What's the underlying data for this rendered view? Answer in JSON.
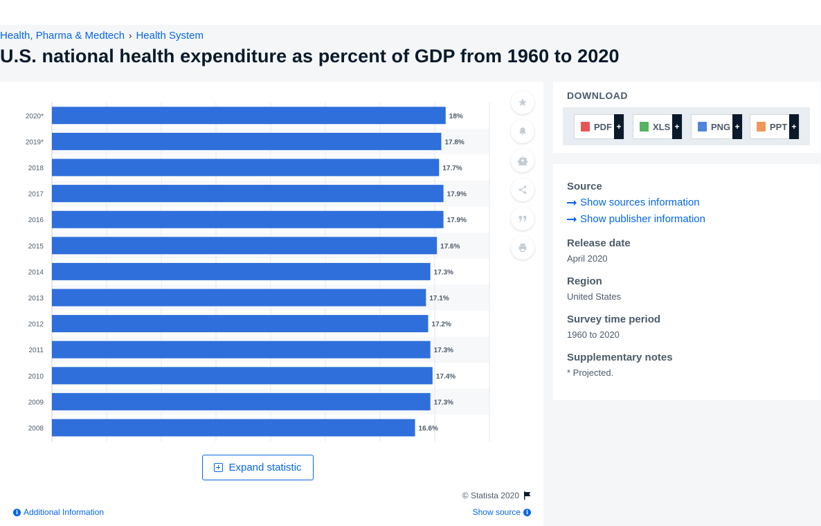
{
  "breadcrumb": {
    "items": [
      "Health, Pharma & Medtech",
      "Health System"
    ],
    "separator": "›"
  },
  "page": {
    "title": "U.S. national health expenditure as percent of GDP from 1960 to 2020"
  },
  "chart_data": {
    "type": "bar",
    "orientation": "horizontal",
    "bar_color": "#2f6fdb",
    "categories": [
      "2020*",
      "2019*",
      "2018",
      "2017",
      "2016",
      "2015",
      "2014",
      "2013",
      "2012",
      "2011",
      "2010",
      "2009",
      "2008"
    ],
    "values": [
      18,
      17.8,
      17.7,
      17.9,
      17.9,
      17.6,
      17.3,
      17.1,
      17.2,
      17.3,
      17.4,
      17.3,
      16.6
    ],
    "data_labels": [
      "18%",
      "17.8%",
      "17.7%",
      "17.9%",
      "17.9%",
      "17.6%",
      "17.3%",
      "17.1%",
      "17.2%",
      "17.3%",
      "17.4%",
      "17.3%",
      "16.6%"
    ],
    "xlim": [
      0,
      20
    ],
    "grid": true
  },
  "chart_tools": {
    "icons": [
      "star-icon",
      "bell-icon",
      "gear-icon",
      "share-icon",
      "quote-icon",
      "print-icon"
    ]
  },
  "chart_footer": {
    "expand_label": "Expand statistic",
    "copyright": "© Statista 2020",
    "additional_info": "Additional Information",
    "show_source": "Show source"
  },
  "download": {
    "title": "DOWNLOAD",
    "buttons": [
      {
        "label": "PDF",
        "plus": "+",
        "color": "#e03a3a"
      },
      {
        "label": "XLS",
        "plus": "+",
        "color": "#3aa545"
      },
      {
        "label": "PNG",
        "plus": "+",
        "color": "#2f6fdb"
      },
      {
        "label": "PPT",
        "plus": "+",
        "color": "#f0853a"
      }
    ]
  },
  "info": {
    "source_heading": "Source",
    "show_sources": "Show sources information",
    "show_publisher": "Show publisher information",
    "release_heading": "Release date",
    "release_value": "April 2020",
    "region_heading": "Region",
    "region_value": "United States",
    "survey_heading": "Survey time period",
    "survey_value": "1960 to 2020",
    "notes_heading": "Supplementary notes",
    "notes_value": "* Projected."
  }
}
